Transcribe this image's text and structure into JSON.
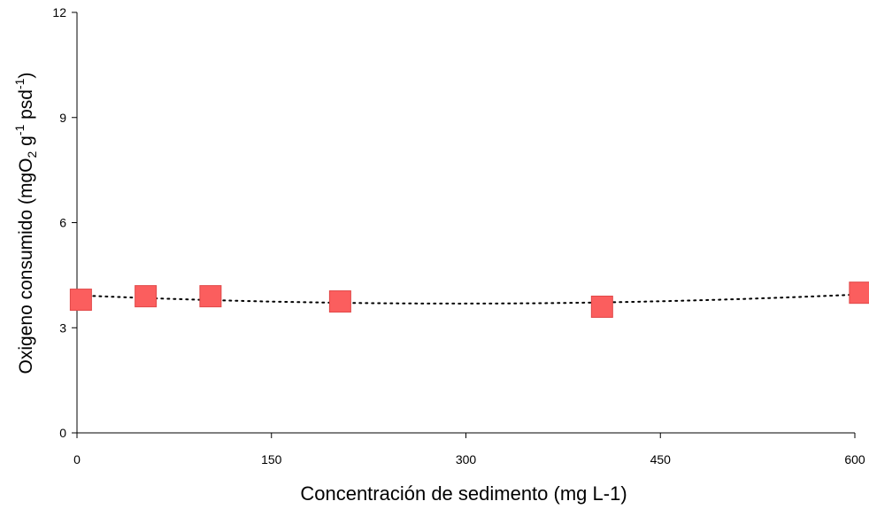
{
  "chart_data": {
    "type": "scatter",
    "xlabel": "Concentración de sedimento  (mg L-1)",
    "ylabel": {
      "prefix": "Oxigeno consumido (mgO",
      "sub": "2",
      "mid1": " g",
      "sup1": "-1",
      "mid2": " psd",
      "sup2": "-1",
      "suffix": ")"
    },
    "xlim": [
      0,
      600
    ],
    "ylim": [
      0,
      12
    ],
    "xticks": [
      "0",
      "150",
      "300",
      "450",
      "600"
    ],
    "yticks": [
      "0",
      "3",
      "6",
      "9",
      "12"
    ],
    "xtick_values": [
      0,
      150,
      300,
      450,
      600
    ],
    "ytick_values": [
      0,
      3,
      6,
      9,
      12
    ],
    "series": [
      {
        "x": [
          3,
          53,
          103,
          203,
          405,
          604
        ],
        "y": [
          3.8,
          3.9,
          3.9,
          3.75,
          3.6,
          4.0
        ],
        "marker": "square",
        "color": "#fb5e5e",
        "trendline": "dotted polynomial"
      }
    ],
    "grid": false,
    "legend": "none"
  }
}
